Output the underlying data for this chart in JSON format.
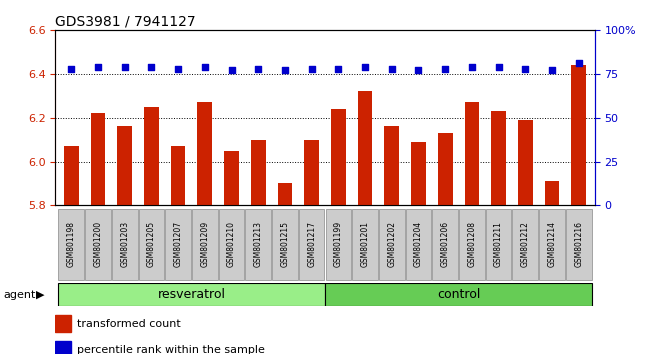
{
  "title": "GDS3981 / 7941127",
  "samples": [
    "GSM801198",
    "GSM801200",
    "GSM801203",
    "GSM801205",
    "GSM801207",
    "GSM801209",
    "GSM801210",
    "GSM801213",
    "GSM801215",
    "GSM801217",
    "GSM801199",
    "GSM801201",
    "GSM801202",
    "GSM801204",
    "GSM801206",
    "GSM801208",
    "GSM801211",
    "GSM801212",
    "GSM801214",
    "GSM801216"
  ],
  "transformed_count": [
    6.07,
    6.22,
    6.16,
    6.25,
    6.07,
    6.27,
    6.05,
    6.1,
    5.9,
    6.1,
    6.24,
    6.32,
    6.16,
    6.09,
    6.13,
    6.27,
    6.23,
    6.19,
    5.91,
    6.44
  ],
  "percentile_rank": [
    78,
    79,
    79,
    79,
    78,
    79,
    77,
    78,
    77,
    78,
    78,
    79,
    78,
    77,
    78,
    79,
    79,
    78,
    77,
    81
  ],
  "ylim_left": [
    5.8,
    6.6
  ],
  "ylim_right": [
    0,
    100
  ],
  "bar_color": "#cc2200",
  "dot_color": "#0000cc",
  "resveratrol_color": "#99ee88",
  "control_color": "#66cc55",
  "agent_label": "agent",
  "group_labels": [
    "resveratrol",
    "control"
  ],
  "legend_bar": "transformed count",
  "legend_dot": "percentile rank within the sample",
  "n_resveratrol": 10,
  "n_control": 10
}
